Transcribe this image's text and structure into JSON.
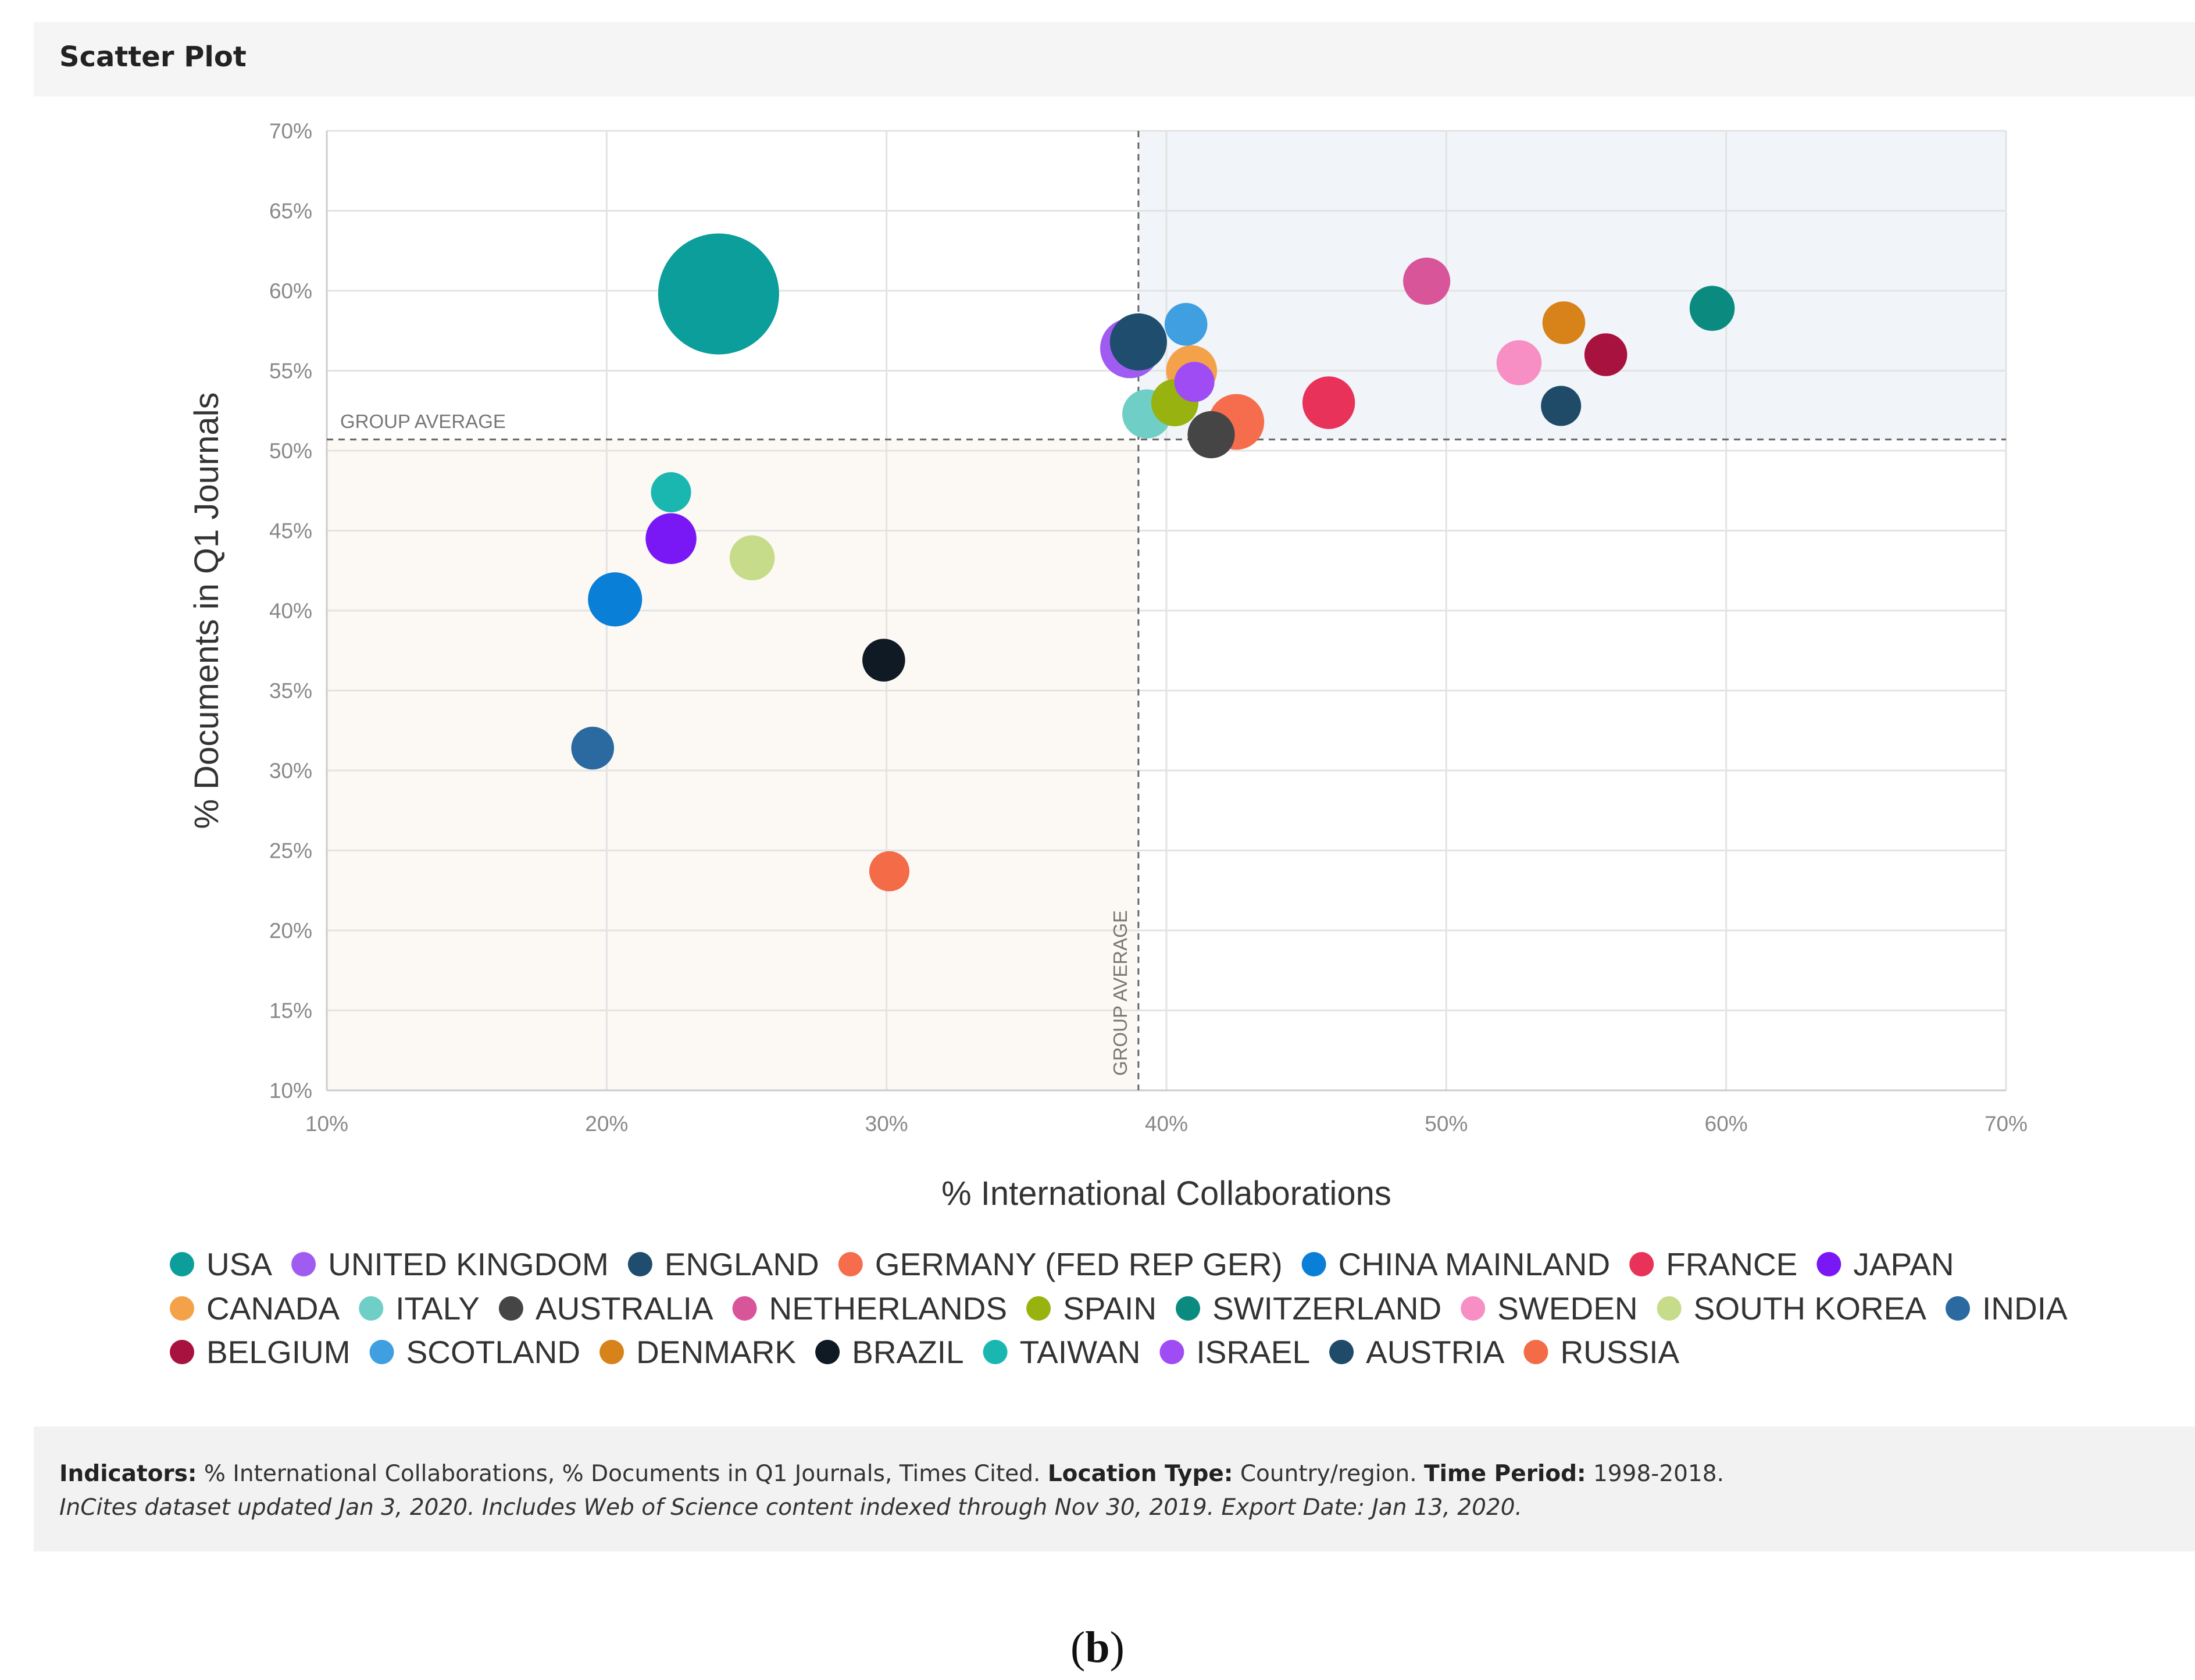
{
  "panel_title": "Scatter Plot",
  "footer": {
    "indicators_label": "Indicators:",
    "indicators_text": "% International Collaborations, % Documents in Q1 Journals, Times Cited.",
    "location_label": "Location Type:",
    "location_text": "Country/region.",
    "period_label": "Time Period:",
    "period_text": "1998-2018.",
    "note": "InCites dataset updated Jan 3, 2020. Includes Web of Science content indexed through Nov 30, 2019. Export Date: Jan 13, 2020."
  },
  "caption": {
    "open": "(",
    "letter": "b",
    "close": ")"
  },
  "chart_data": {
    "type": "scatter",
    "title": "",
    "xlabel": "% International Collaborations",
    "ylabel": "% Documents in Q1 Journals",
    "xlim": [
      10,
      70
    ],
    "ylim": [
      10,
      70
    ],
    "x_ticks": [
      "10%",
      "20%",
      "30%",
      "40%",
      "50%",
      "60%",
      "70%"
    ],
    "y_ticks": [
      "10%",
      "15%",
      "20%",
      "25%",
      "30%",
      "35%",
      "40%",
      "45%",
      "50%",
      "55%",
      "60%",
      "65%",
      "70%"
    ],
    "grid": true,
    "bubble_size_indicator": "Times Cited",
    "group_average": {
      "x": 39,
      "y": 50.7,
      "label": "GROUP AVERAGE"
    },
    "legend_position": "bottom",
    "series": [
      {
        "name": "USA",
        "color": "#0b9e9a",
        "x": 24,
        "y": 59.8,
        "size": 100
      },
      {
        "name": "UNITED KINGDOM",
        "color": "#a05cf0",
        "x": 38.7,
        "y": 56.4,
        "size": 14
      },
      {
        "name": "ENGLAND",
        "color": "#1e4d6e",
        "x": 39,
        "y": 56.8,
        "size": 12
      },
      {
        "name": "GERMANY (FED REP GER)",
        "color": "#f56d4c",
        "x": 42.5,
        "y": 51.8,
        "size": 11
      },
      {
        "name": "CHINA MAINLAND",
        "color": "#0a7fd8",
        "x": 20.3,
        "y": 40.7,
        "size": 10
      },
      {
        "name": "FRANCE",
        "color": "#e8325a",
        "x": 45.8,
        "y": 53,
        "size": 9
      },
      {
        "name": "JAPAN",
        "color": "#7a18f5",
        "x": 22.3,
        "y": 44.5,
        "size": 8
      },
      {
        "name": "CANADA",
        "color": "#f4a24a",
        "x": 40.9,
        "y": 55,
        "size": 8
      },
      {
        "name": "ITALY",
        "color": "#6fcfc7",
        "x": 39.3,
        "y": 52.3,
        "size": 7
      },
      {
        "name": "AUSTRALIA",
        "color": "#454545",
        "x": 41.6,
        "y": 51,
        "size": 6
      },
      {
        "name": "NETHERLANDS",
        "color": "#d9559a",
        "x": 49.3,
        "y": 60.6,
        "size": 6
      },
      {
        "name": "SPAIN",
        "color": "#98b20f",
        "x": 40.3,
        "y": 53,
        "size": 6
      },
      {
        "name": "SWITZERLAND",
        "color": "#0b8a80",
        "x": 59.5,
        "y": 58.9,
        "size": 5
      },
      {
        "name": "SWEDEN",
        "color": "#f78fc4",
        "x": 52.6,
        "y": 55.5,
        "size": 5
      },
      {
        "name": "SOUTH KOREA",
        "color": "#c7dc8a",
        "x": 25.2,
        "y": 43.3,
        "size": 5
      },
      {
        "name": "INDIA",
        "color": "#2b6aa0",
        "x": 19.5,
        "y": 31.4,
        "size": 4
      },
      {
        "name": "BELGIUM",
        "color": "#a7133e",
        "x": 55.7,
        "y": 56,
        "size": 4
      },
      {
        "name": "SCOTLAND",
        "color": "#3f9fe0",
        "x": 40.7,
        "y": 57.9,
        "size": 4
      },
      {
        "name": "DENMARK",
        "color": "#d8821a",
        "x": 54.2,
        "y": 58,
        "size": 4
      },
      {
        "name": "BRAZIL",
        "color": "#0f1a24",
        "x": 29.9,
        "y": 36.9,
        "size": 4
      },
      {
        "name": "TAIWAN",
        "color": "#1ab7b0",
        "x": 22.3,
        "y": 47.4,
        "size": 3
      },
      {
        "name": "ISRAEL",
        "color": "#a04cf5",
        "x": 41,
        "y": 54.3,
        "size": 3
      },
      {
        "name": "AUSTRIA",
        "color": "#1f4a68",
        "x": 54.1,
        "y": 52.8,
        "size": 3
      },
      {
        "name": "RUSSIA",
        "color": "#f46b48",
        "x": 30.1,
        "y": 23.7,
        "size": 3
      }
    ]
  }
}
